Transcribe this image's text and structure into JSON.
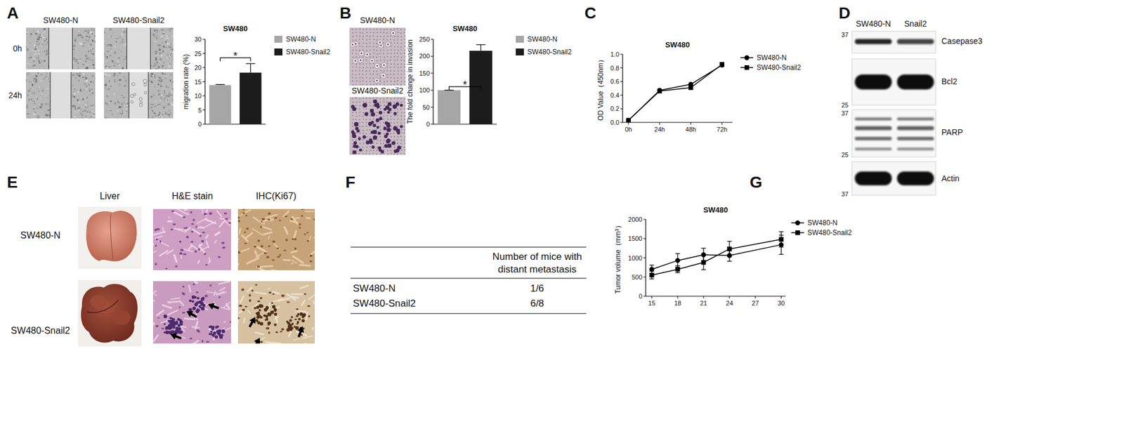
{
  "chart_data": [
    {
      "type": "bar",
      "title": "SW480",
      "y_label": "migration rate (%)",
      "categories": [
        "SW480-N",
        "SW480-Snail2"
      ],
      "values": [
        13.8,
        18.2
      ],
      "errors": [
        0.2,
        3.2
      ],
      "colors": [
        "#a6a6a6",
        "#1c1c1c"
      ],
      "ylim": [
        0,
        30
      ],
      "yticks": [
        0,
        5,
        10,
        15,
        20,
        25,
        30
      ],
      "grid": false,
      "legend": "right",
      "tick_labels": "y",
      "annotations": [
        "*"
      ]
    },
    {
      "type": "bar",
      "title": "SW480",
      "y_label": "The fold change in invasion",
      "categories": [
        "SW480-N",
        "SW480-Snail2"
      ],
      "values": [
        100,
        216
      ],
      "errors": [
        0,
        18
      ],
      "colors": [
        "#a6a6a6",
        "#1c1c1c"
      ],
      "ylim": [
        0,
        250
      ],
      "yticks": [
        0,
        50,
        100,
        150,
        200,
        250
      ],
      "grid": false,
      "legend": "right",
      "tick_labels": "y",
      "annotations": [
        "*"
      ]
    },
    {
      "type": "line",
      "title": "SW480",
      "y_label": "OD Value（450nm）",
      "categories": [
        "0h",
        "24h",
        "48h",
        "72h"
      ],
      "series": [
        {
          "name": "SW480-N",
          "color": "#000000",
          "marker": "circle",
          "line_style": "solid",
          "values": [
            0.03,
            0.47,
            0.56,
            0.84
          ],
          "errors": [
            0,
            0.01,
            0.01,
            0.02
          ]
        },
        {
          "name": "SW480-Snail2",
          "color": "#000000",
          "marker": "square",
          "line_style": "solid",
          "values": [
            0.03,
            0.46,
            0.51,
            0.85
          ],
          "errors": [
            0,
            0.01,
            0.01,
            0.03
          ]
        }
      ],
      "ylim": [
        0,
        1
      ],
      "yticks": [
        {
          "value": 0,
          "label": "0.0"
        },
        0.2,
        0.4,
        0.6,
        0.8,
        {
          "value": 1,
          "label": "1.0"
        }
      ],
      "grid": false,
      "legend": "right"
    },
    {
      "type": "line",
      "title": "SW480",
      "y_label": "Tumor volume（mm³）",
      "x": [
        15,
        18,
        21,
        24,
        30
      ],
      "series": [
        {
          "name": "SW480-N",
          "color": "#000000",
          "marker": "circle",
          "line_style": "solid",
          "values": [
            700,
            930,
            1080,
            1060,
            1340
          ],
          "errors": [
            110,
            180,
            170,
            150,
            250
          ]
        },
        {
          "name": "SW480-Snail2",
          "color": "#000000",
          "marker": "square",
          "line_style": "solid",
          "values": [
            550,
            700,
            880,
            1230,
            1480
          ],
          "errors": [
            100,
            90,
            190,
            200,
            200
          ]
        }
      ],
      "xlim": [
        14.3,
        30.5
      ],
      "xticks": [
        15,
        18,
        21,
        24,
        27,
        30
      ],
      "ylim": [
        0,
        2000
      ],
      "yticks": [
        0,
        500,
        1000,
        1500,
        2000
      ],
      "grid": false,
      "legend": "right"
    }
  ],
  "panel_labels": [
    "A",
    "B",
    "C",
    "D",
    "E",
    "F",
    "G"
  ],
  "panel_a": {
    "columns": [
      "SW480-N",
      "SW480-Snail2"
    ],
    "rows": [
      "0h",
      "24h"
    ]
  },
  "panel_b": {
    "images": [
      "SW480-N",
      "SW480-Snail2"
    ]
  },
  "panel_d": {
    "lanes": [
      "SW480-N",
      "Snail2"
    ],
    "blots": [
      {
        "name": "Casepase3",
        "markers": [
          37
        ]
      },
      {
        "name": "Bcl2",
        "markers": [
          25
        ]
      },
      {
        "name": "PARP",
        "markers": [
          37,
          25
        ]
      },
      {
        "name": "Actin",
        "markers": [
          37
        ]
      }
    ]
  },
  "panel_e": {
    "columns": [
      "Liver",
      "H&E stain",
      "IHC(Ki67)"
    ],
    "rows": [
      "SW480-N",
      "SW480-Snail2"
    ]
  },
  "panel_f": {
    "table": {
      "header": "Number of mice with distant metastasis",
      "rows": [
        [
          "SW480-N",
          "1/6"
        ],
        [
          "SW480-Snail2",
          "6/8"
        ]
      ]
    }
  }
}
